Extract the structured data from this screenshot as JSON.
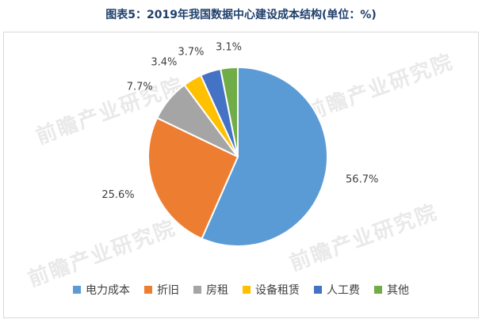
{
  "title": "图表5：2019年我国数据中心建设成本结构(单位：%)",
  "watermark": "前瞻产业研究院",
  "chart_data": {
    "type": "pie",
    "title": "图表5：2019年我国数据中心建设成本结构(单位：%)",
    "categories": [
      "电力成本",
      "折旧",
      "房租",
      "设备租赁",
      "人工费",
      "其他"
    ],
    "values": [
      56.7,
      25.6,
      7.7,
      3.4,
      3.7,
      3.1
    ],
    "labels": [
      "56.7%",
      "25.6%",
      "7.7%",
      "3.4%",
      "3.7%",
      "3.1%"
    ],
    "colors": [
      "#5b9bd5",
      "#ed7d31",
      "#a5a5a5",
      "#ffc000",
      "#4472c4",
      "#70ad47"
    ],
    "legend_position": "bottom"
  }
}
